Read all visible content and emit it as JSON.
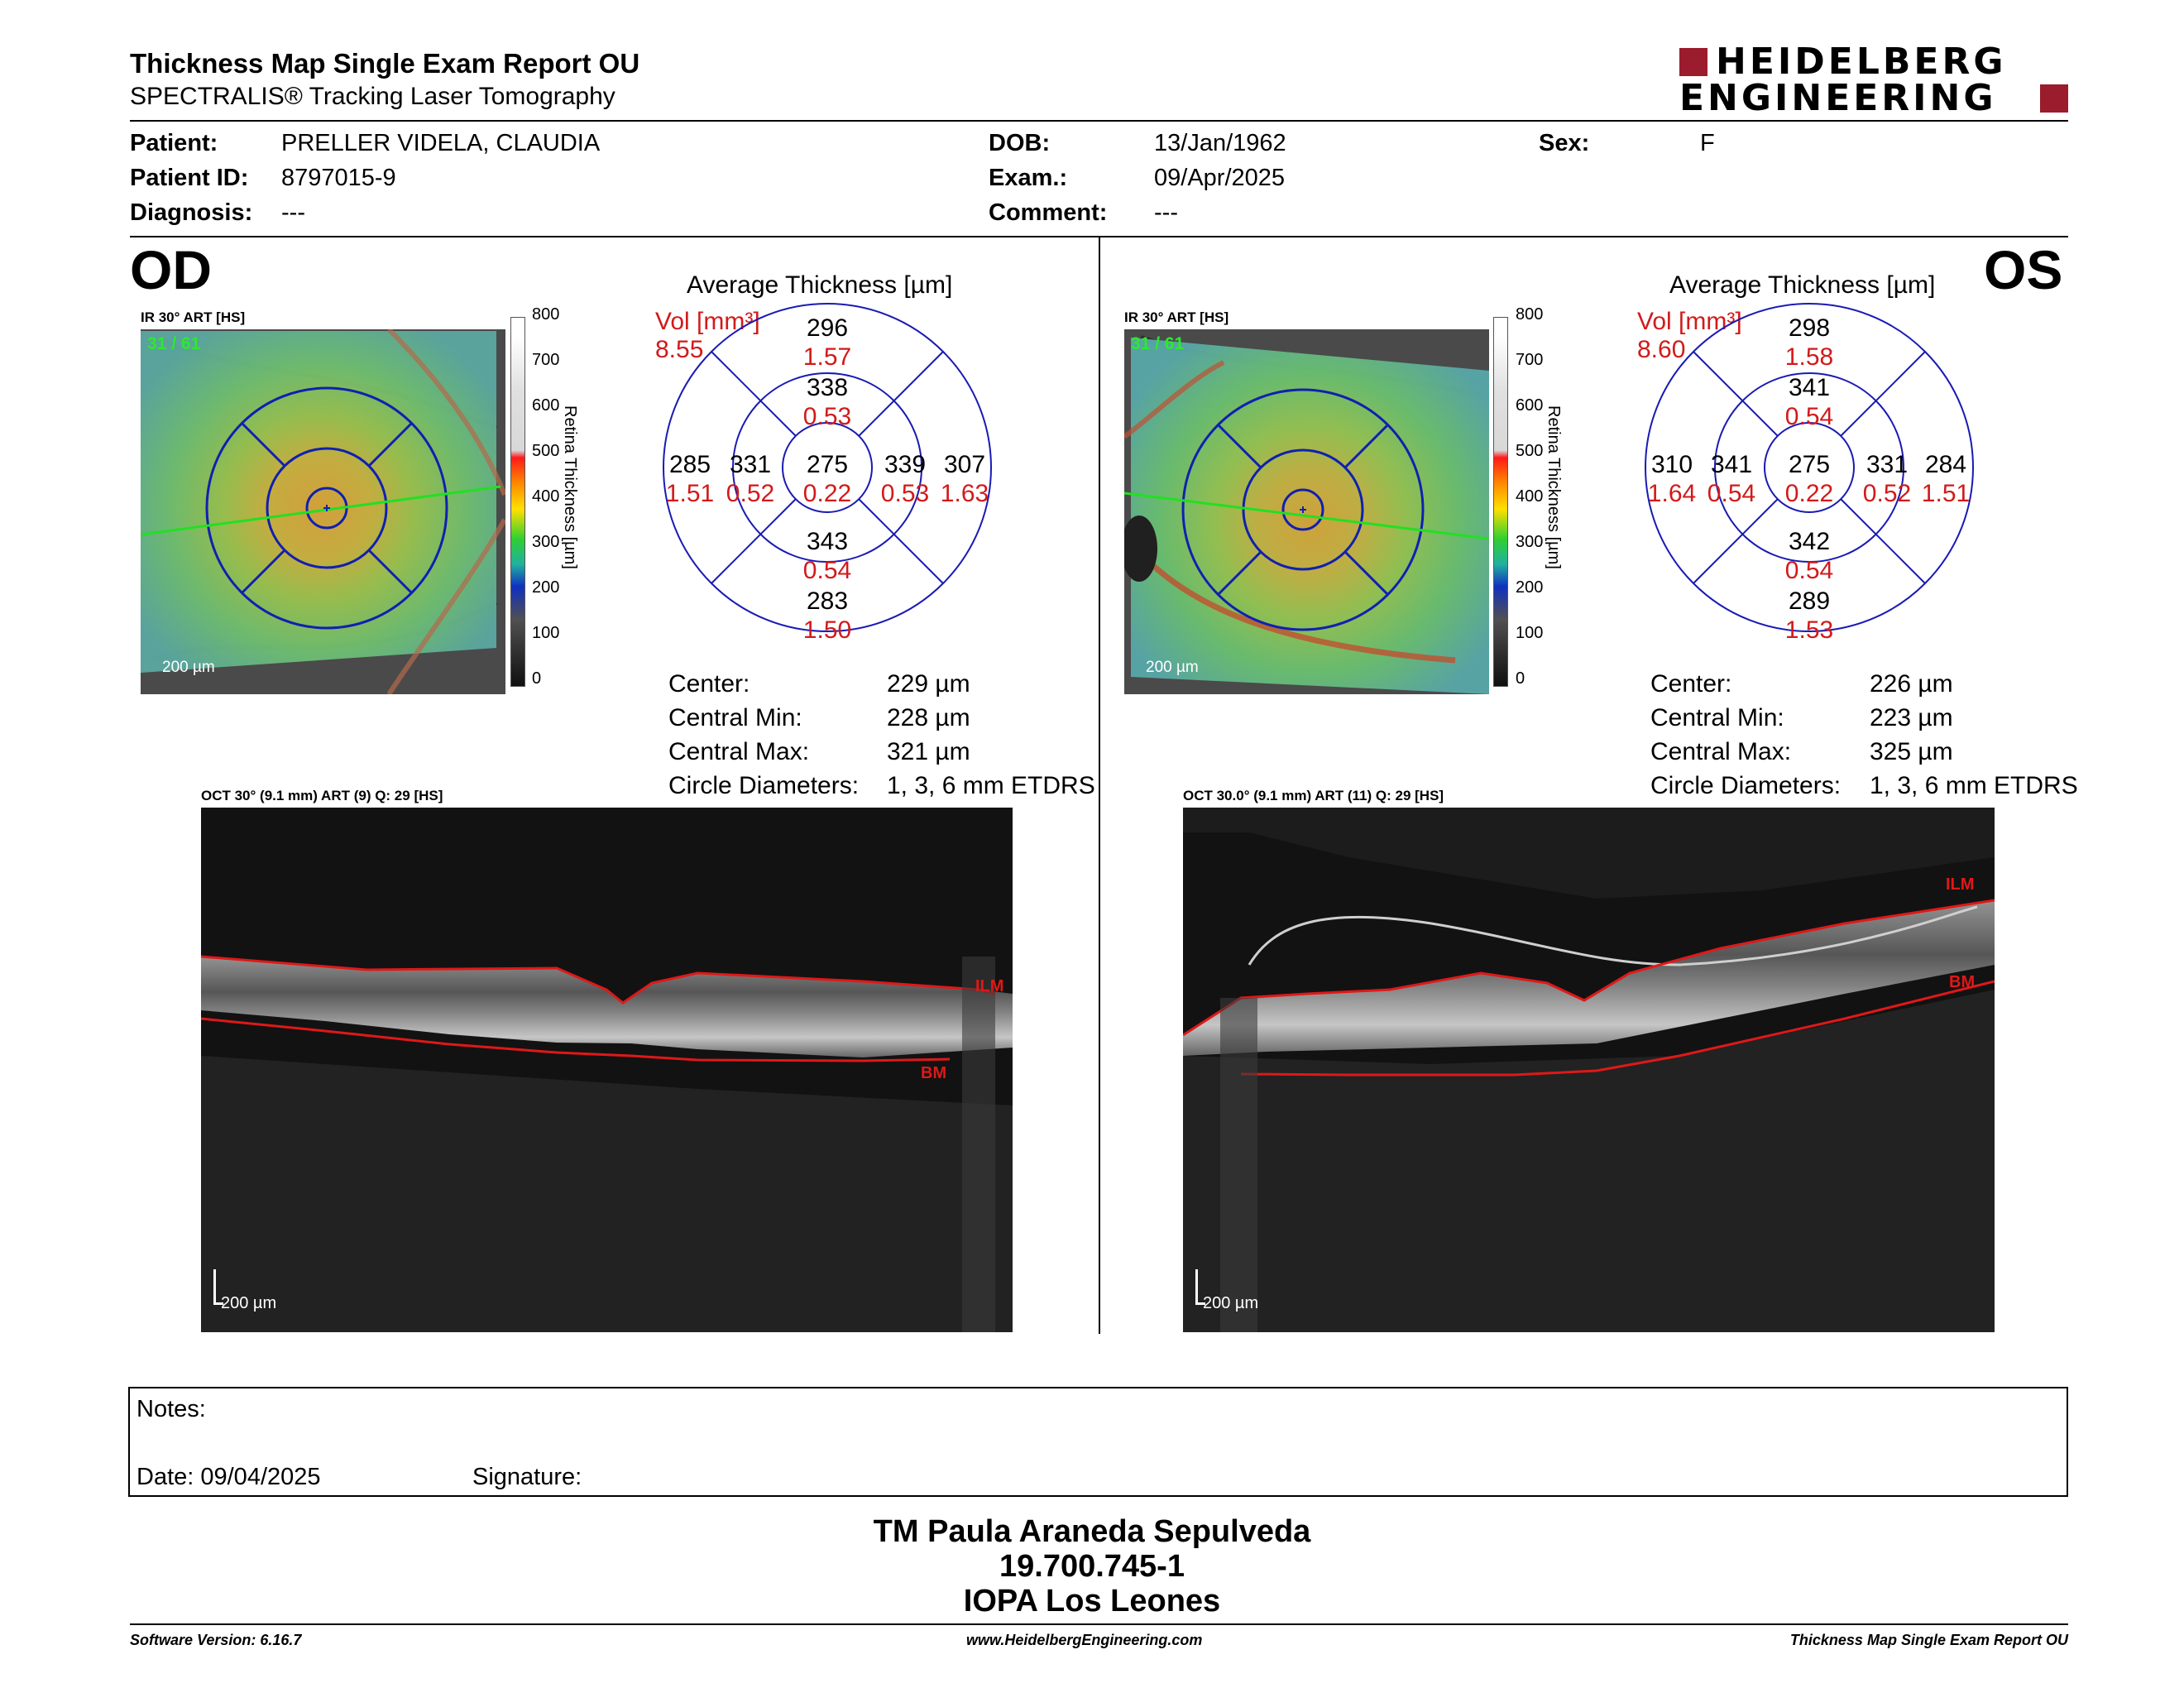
{
  "header": {
    "title": "Thickness Map Single Exam Report OU",
    "subtitle": "SPECTRALIS® Tracking Laser Tomography",
    "logo_line1": "HEIDELBERG",
    "logo_line2": "ENGINEERING"
  },
  "patient": {
    "patient_label": "Patient:",
    "patient": "PRELLER VIDELA, CLAUDIA",
    "id_label": "Patient ID:",
    "id": "8797015-9",
    "diagnosis_label": "Diagnosis:",
    "diagnosis": "---",
    "dob_label": "DOB:",
    "dob": "13/Jan/1962",
    "exam_label": "Exam.:",
    "exam": "09/Apr/2025",
    "comment_label": "Comment:",
    "comment": "---",
    "sex_label": "Sex:",
    "sex": "F"
  },
  "colorbar": {
    "ticks": [
      "800",
      "700",
      "600",
      "500",
      "400",
      "300",
      "200",
      "100",
      "0"
    ],
    "label": "Retina Thickness [µm]"
  },
  "od": {
    "eye": "OD",
    "ir_caption": "IR 30° ART [HS]",
    "frame": "31 / 61",
    "scale": "200 µm",
    "avg_title": "Average Thickness [µm]",
    "vol_label": "Vol [mm³]",
    "vol": "8.55",
    "sectors": {
      "outer_sup": "296",
      "outer_sup_v": "1.57",
      "inner_sup": "338",
      "inner_sup_v": "0.53",
      "outer_temp": "285",
      "outer_temp_v": "1.51",
      "inner_temp": "331",
      "inner_temp_v": "0.52",
      "center": "275",
      "center_v": "0.22",
      "inner_nas": "339",
      "inner_nas_v": "0.53",
      "outer_nas": "307",
      "outer_nas_v": "1.63",
      "inner_inf": "343",
      "inner_inf_v": "0.54",
      "outer_inf": "283",
      "outer_inf_v": "1.50"
    },
    "stats": {
      "center_label": "Center:",
      "center": "229 µm",
      "min_label": "Central Min:",
      "min": "228 µm",
      "max_label": "Central Max:",
      "max": "321 µm",
      "diam_label": "Circle Diameters:",
      "diam": "1, 3, 6 mm ETDRS"
    },
    "oct_caption": "OCT 30° (9.1 mm) ART (9) Q: 29 [HS]",
    "oct_scale": "200 µm",
    "ilm": "ILM",
    "bm": "BM"
  },
  "os": {
    "eye": "OS",
    "ir_caption": "IR 30° ART [HS]",
    "frame": "31 / 61",
    "scale": "200 µm",
    "avg_title": "Average Thickness [µm]",
    "vol_label": "Vol [mm³]",
    "vol": "8.60",
    "sectors": {
      "outer_sup": "298",
      "outer_sup_v": "1.58",
      "inner_sup": "341",
      "inner_sup_v": "0.54",
      "outer_temp": "310",
      "outer_temp_v": "1.64",
      "inner_temp": "341",
      "inner_temp_v": "0.54",
      "center": "275",
      "center_v": "0.22",
      "inner_nas": "331",
      "inner_nas_v": "0.52",
      "outer_nas": "284",
      "outer_nas_v": "1.51",
      "inner_inf": "342",
      "inner_inf_v": "0.54",
      "outer_inf": "289",
      "outer_inf_v": "1.53"
    },
    "stats": {
      "center_label": "Center:",
      "center": "226 µm",
      "min_label": "Central Min:",
      "min": "223 µm",
      "max_label": "Central Max:",
      "max": "325 µm",
      "diam_label": "Circle Diameters:",
      "diam": "1, 3, 6 mm ETDRS"
    },
    "oct_caption": "OCT 30.0° (9.1 mm) ART (11) Q: 29 [HS]",
    "oct_scale": "200 µm",
    "ilm": "ILM",
    "bm": "BM"
  },
  "notes": {
    "notes_label": "Notes:",
    "date_label": "Date: 09/04/2025",
    "signature_label": "Signature:"
  },
  "stamp": {
    "line1": "TM Paula Araneda Sepulveda",
    "line2": "19.700.745-1",
    "line3": "IOPA Los Leones"
  },
  "footer": {
    "software": "Software Version: 6.16.7",
    "url": "www.HeidelbergEngineering.com",
    "report": "Thickness Map Single Exam Report OU"
  }
}
